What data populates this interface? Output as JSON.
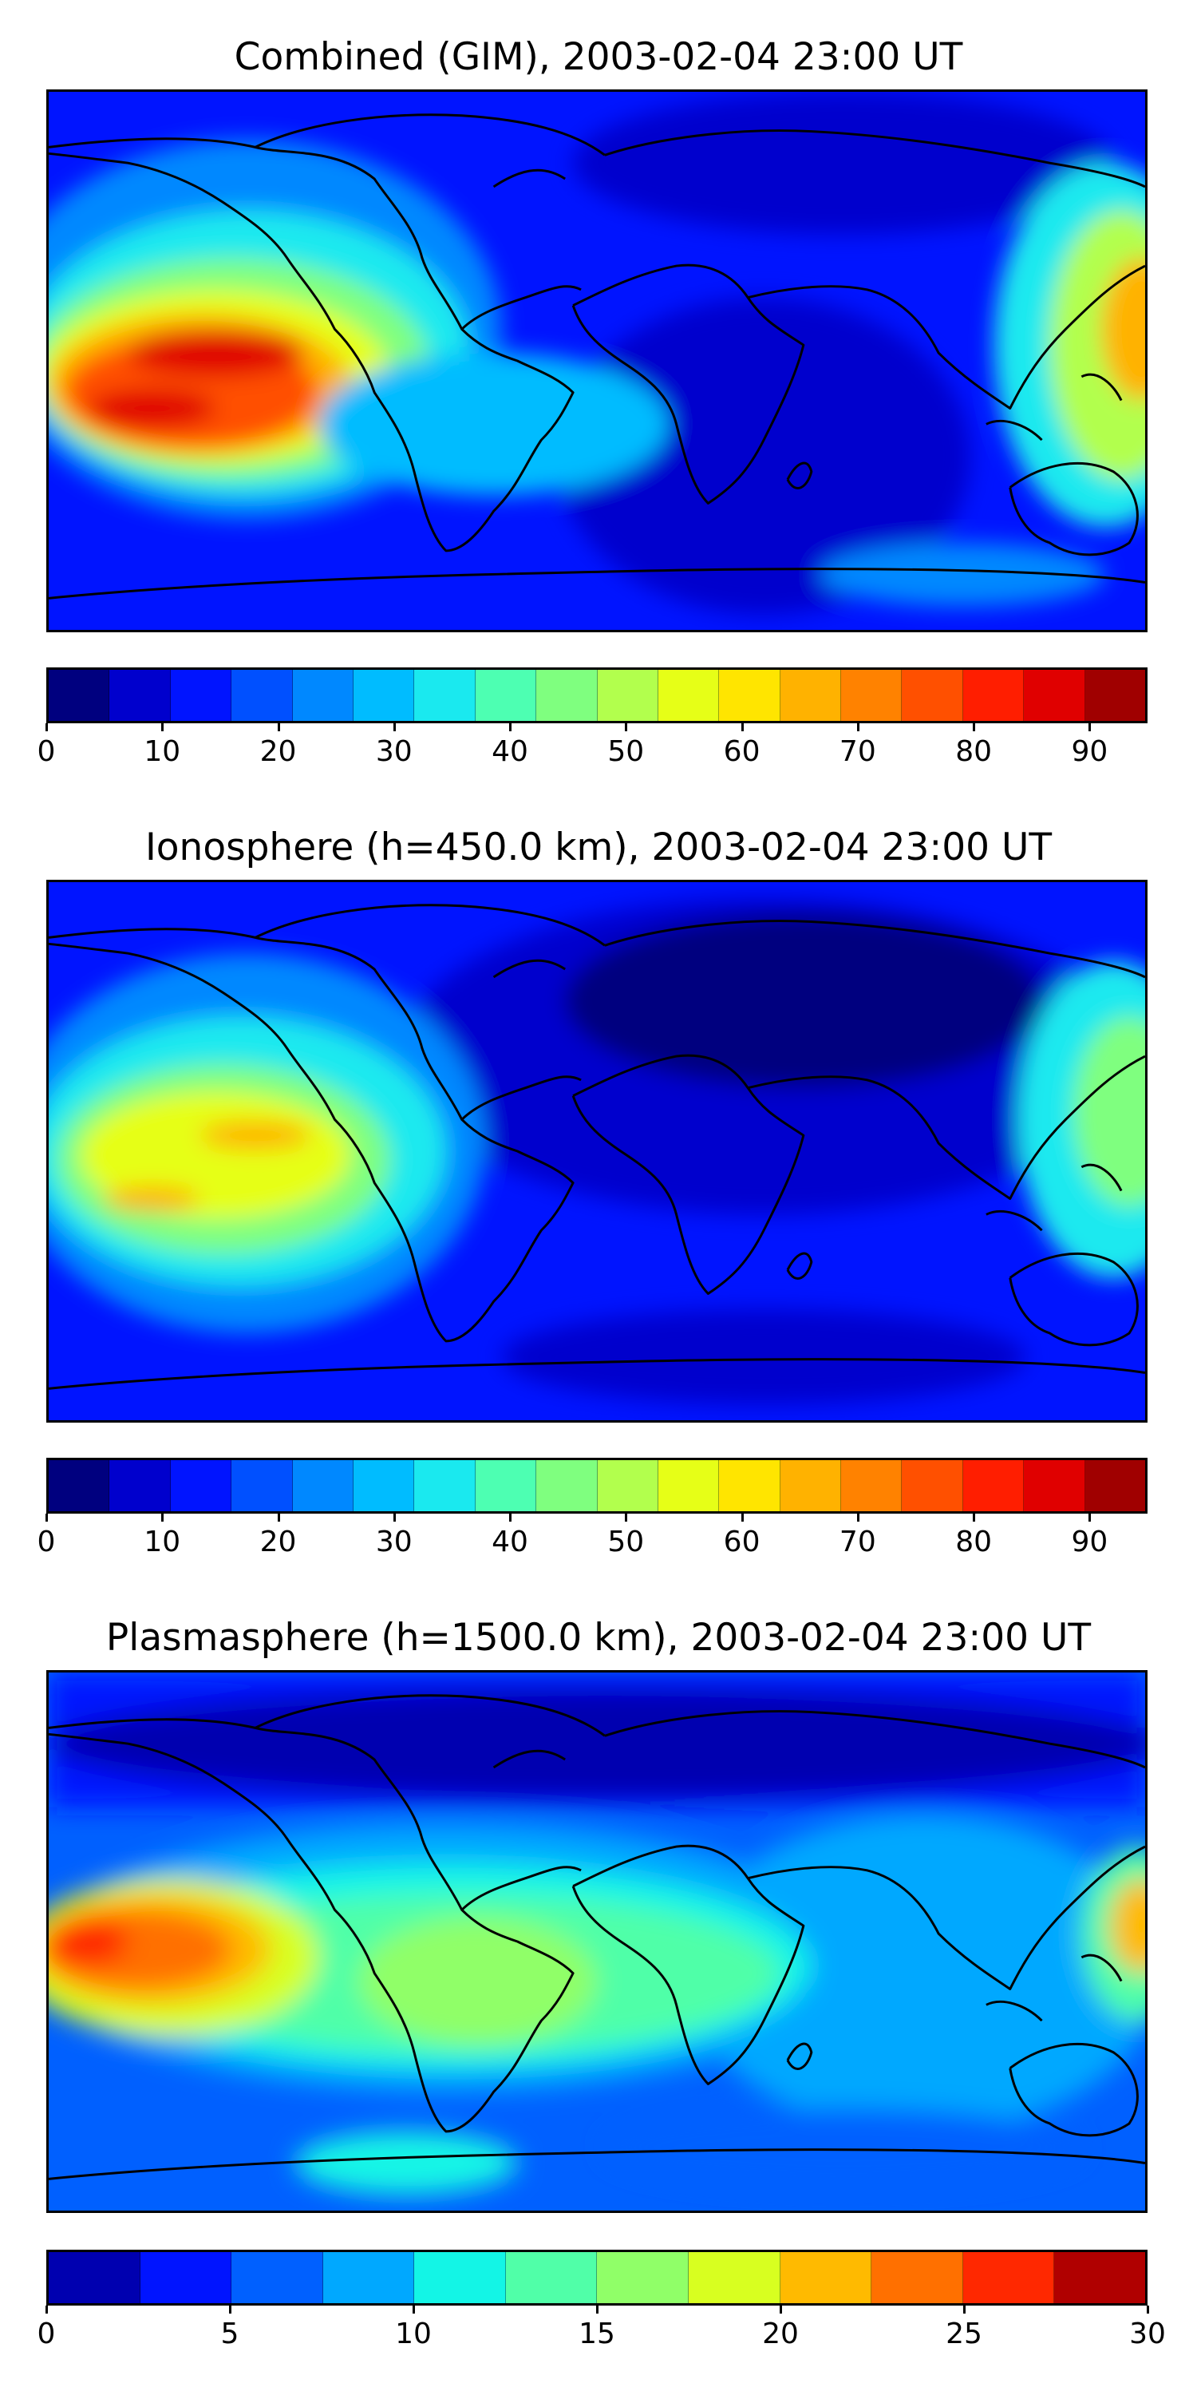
{
  "panels": [
    {
      "title": "Combined (GIM), 2003-02-04 23:00 UT",
      "colorbar": {
        "colors": [
          "#00007f",
          "#0000cd",
          "#0014ff",
          "#0050ff",
          "#0088ff",
          "#00bcff",
          "#1ae9ef",
          "#4dffb2",
          "#7fff7f",
          "#b2ff4d",
          "#e6ff17",
          "#ffe500",
          "#ffb200",
          "#ff8200",
          "#ff5000",
          "#ff1e00",
          "#e00000",
          "#a00000"
        ],
        "ticks": [
          "0",
          "10",
          "20",
          "30",
          "40",
          "50",
          "60",
          "70",
          "80",
          "90"
        ],
        "tick_values": [
          0,
          10,
          20,
          30,
          40,
          50,
          60,
          70,
          80,
          90
        ],
        "range": [
          0,
          95
        ]
      }
    },
    {
      "title": "Ionosphere  (h=450.0 km), 2003-02-04 23:00 UT",
      "colorbar": {
        "colors": [
          "#00007f",
          "#0000cd",
          "#0014ff",
          "#0050ff",
          "#0088ff",
          "#00bcff",
          "#1ae9ef",
          "#4dffb2",
          "#7fff7f",
          "#b2ff4d",
          "#e6ff17",
          "#ffe500",
          "#ffb200",
          "#ff8200",
          "#ff5000",
          "#ff1e00",
          "#e00000",
          "#a00000"
        ],
        "ticks": [
          "0",
          "10",
          "20",
          "30",
          "40",
          "50",
          "60",
          "70",
          "80",
          "90"
        ],
        "tick_values": [
          0,
          10,
          20,
          30,
          40,
          50,
          60,
          70,
          80,
          90
        ],
        "range": [
          0,
          95
        ]
      }
    },
    {
      "title": "Plasmasphere (h=1500.0 km), 2003-02-04 23:00 UT",
      "colorbar": {
        "colors": [
          "#0000b0",
          "#0014ff",
          "#0060ff",
          "#00a8ff",
          "#13f5e6",
          "#50ffa8",
          "#90ff68",
          "#d8ff20",
          "#ffba00",
          "#ff7000",
          "#ff2800",
          "#b00000"
        ],
        "ticks": [
          "0",
          "5",
          "10",
          "15",
          "20",
          "25",
          "30"
        ],
        "tick_values": [
          0,
          5,
          10,
          15,
          20,
          25,
          30
        ],
        "range": [
          0,
          30
        ]
      }
    }
  ]
}
